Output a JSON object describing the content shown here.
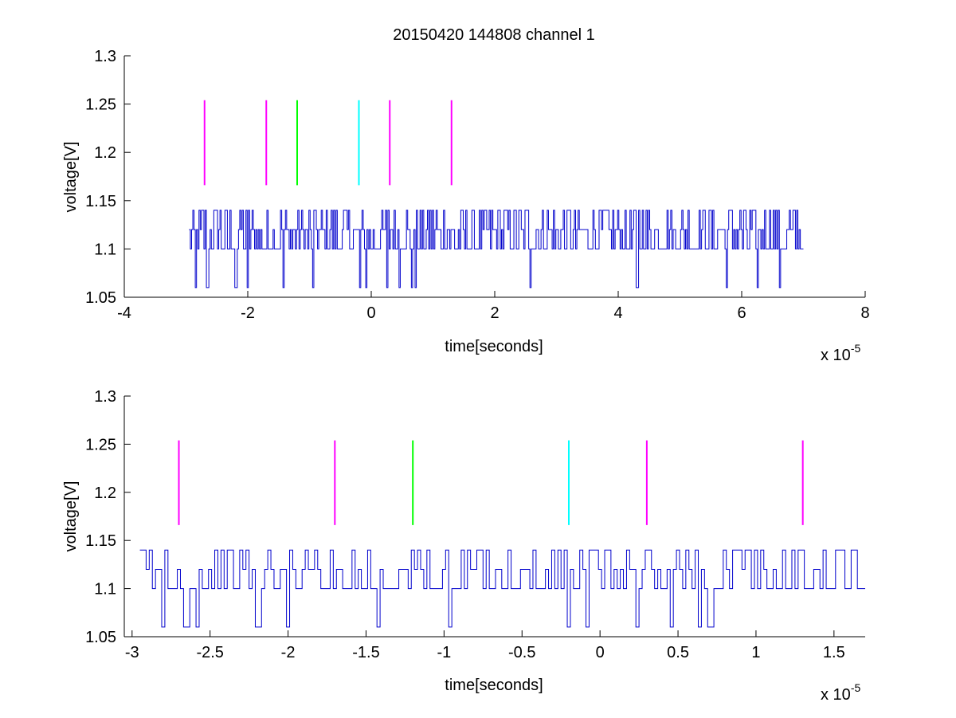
{
  "figure": {
    "title": "20150420 144808 channel 1"
  },
  "colors": {
    "signal": "#0000cc",
    "magenta": "#ff00ff",
    "green": "#00ff00",
    "cyan": "#00ffff"
  },
  "chart_data": [
    {
      "type": "line",
      "title": "20150420 144808 channel 1",
      "xlabel": "time[seconds]",
      "ylabel": "voltage[V]",
      "x_exponent_label": "x 10",
      "x_exponent": "-5",
      "xlim": [
        -4,
        8
      ],
      "ylim": [
        1.05,
        1.3
      ],
      "xticks": [
        -4,
        -2,
        0,
        2,
        4,
        6,
        8
      ],
      "xtick_labels": [
        "-4",
        "-2",
        "0",
        "2",
        "4",
        "6",
        "8"
      ],
      "yticks": [
        1.05,
        1.1,
        1.15,
        1.2,
        1.25,
        1.3
      ],
      "ytick_labels": [
        "1.05",
        "1.1",
        "1.15",
        "1.2",
        "1.25",
        "1.3"
      ],
      "grid": false,
      "series": [
        {
          "range": [
            -2.95,
            7.0
          ],
          "low": 1.1,
          "high": 1.14,
          "mid": 1.12,
          "dip": 1.06,
          "period": 0.02,
          "dips": [
            -2.85,
            -2.66,
            -2.2,
            -2.03,
            -1.42,
            -0.97,
            -0.18,
            -0.11,
            0.25,
            0.44,
            0.64,
            0.71,
            2.36,
            2.57,
            2.7,
            3.23,
            3.82,
            4.3,
            5.75,
            6.25,
            6.62
          ]
        }
      ],
      "markers": [
        {
          "x": -2.7,
          "y0": 1.166,
          "y1": 1.254,
          "color": "magenta"
        },
        {
          "x": -1.7,
          "y0": 1.166,
          "y1": 1.254,
          "color": "magenta"
        },
        {
          "x": -1.2,
          "y0": 1.166,
          "y1": 1.254,
          "color": "green"
        },
        {
          "x": -0.2,
          "y0": 1.166,
          "y1": 1.254,
          "color": "cyan"
        },
        {
          "x": 0.3,
          "y0": 1.166,
          "y1": 1.254,
          "color": "magenta"
        },
        {
          "x": 1.3,
          "y0": 1.166,
          "y1": 1.254,
          "color": "magenta"
        }
      ]
    },
    {
      "type": "line",
      "xlabel": "time[seconds]",
      "ylabel": "voltage[V]",
      "x_exponent_label": "x 10",
      "x_exponent": "-5",
      "xlim": [
        -3.05,
        1.7
      ],
      "ylim": [
        1.05,
        1.3
      ],
      "xticks": [
        -3,
        -2.5,
        -2,
        -1.5,
        -1,
        -0.5,
        0,
        0.5,
        1,
        1.5
      ],
      "xtick_labels": [
        "-3",
        "-2.5",
        "-2",
        "-1.5",
        "-1",
        "-0.5",
        "0",
        "0.5",
        "1",
        "1.5"
      ],
      "yticks": [
        1.05,
        1.1,
        1.15,
        1.2,
        1.25,
        1.3
      ],
      "ytick_labels": [
        "1.05",
        "1.1",
        "1.15",
        "1.2",
        "1.25",
        "1.3"
      ],
      "grid": false,
      "series": [
        {
          "range": [
            -2.95,
            1.7
          ],
          "low": 1.1,
          "high": 1.14,
          "mid": 1.12,
          "dip": 1.06,
          "period": 0.02,
          "dips": [
            -2.8,
            -2.66,
            -2.59,
            -2.2,
            -2.03,
            -1.43,
            -0.98,
            -0.2,
            -0.11,
            0.22,
            0.44,
            0.62,
            0.69,
            0.72
          ]
        }
      ],
      "markers": [
        {
          "x": -2.7,
          "y0": 1.166,
          "y1": 1.254,
          "color": "magenta"
        },
        {
          "x": -1.7,
          "y0": 1.166,
          "y1": 1.254,
          "color": "magenta"
        },
        {
          "x": -1.2,
          "y0": 1.166,
          "y1": 1.254,
          "color": "green"
        },
        {
          "x": -0.2,
          "y0": 1.166,
          "y1": 1.254,
          "color": "cyan"
        },
        {
          "x": 0.3,
          "y0": 1.166,
          "y1": 1.254,
          "color": "magenta"
        },
        {
          "x": 1.3,
          "y0": 1.166,
          "y1": 1.254,
          "color": "magenta"
        }
      ]
    }
  ]
}
